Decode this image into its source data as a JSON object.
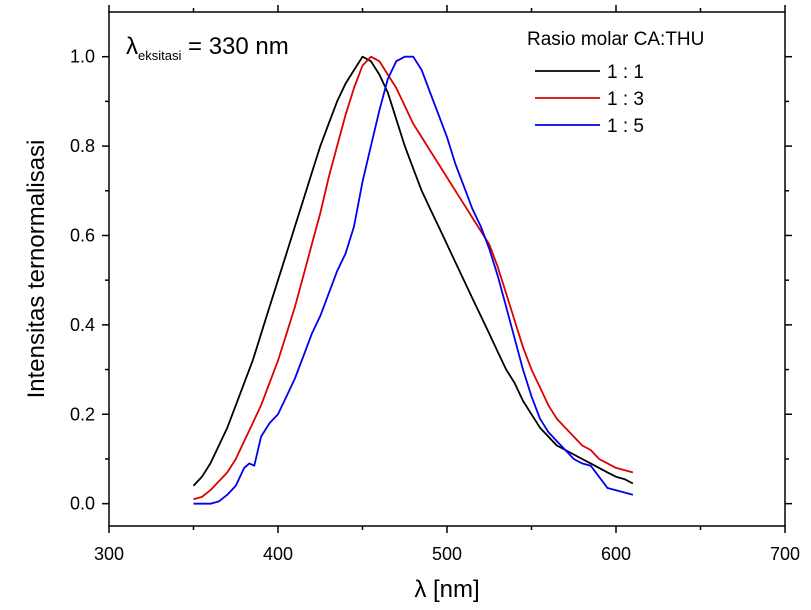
{
  "chart_data": {
    "type": "line",
    "xlabel": "λ [nm]",
    "ylabel": "Intensitas ternormalisasi",
    "xlim": [
      300,
      700
    ],
    "ylim": [
      -0.05,
      1.1
    ],
    "xticks": [
      300,
      400,
      500,
      600,
      700
    ],
    "yticks": [
      0.0,
      0.2,
      0.4,
      0.6,
      0.8,
      1.0
    ],
    "grid": false,
    "annotation": {
      "symbol": "λ",
      "subscript": "eksitasi",
      "text": " = 330 nm"
    },
    "legend": {
      "title": "Rasio molar CA:THU",
      "position": "top-right"
    },
    "colors": {
      "s1": "#000000",
      "s2": "#dd0000",
      "s3": "#0000ee"
    },
    "series": [
      {
        "name": "1 : 1",
        "color": "#000000",
        "x": [
          350,
          355,
          360,
          365,
          370,
          375,
          380,
          385,
          390,
          395,
          400,
          405,
          410,
          415,
          420,
          425,
          430,
          435,
          440,
          445,
          450,
          455,
          460,
          465,
          470,
          475,
          480,
          485,
          490,
          495,
          500,
          505,
          510,
          515,
          520,
          525,
          530,
          535,
          540,
          545,
          550,
          555,
          560,
          565,
          570,
          575,
          580,
          585,
          590,
          595,
          600,
          605,
          610
        ],
        "y": [
          0.04,
          0.06,
          0.09,
          0.13,
          0.17,
          0.22,
          0.27,
          0.32,
          0.38,
          0.44,
          0.5,
          0.56,
          0.62,
          0.68,
          0.74,
          0.8,
          0.85,
          0.9,
          0.94,
          0.97,
          1.0,
          0.99,
          0.96,
          0.92,
          0.86,
          0.8,
          0.75,
          0.7,
          0.66,
          0.62,
          0.58,
          0.54,
          0.5,
          0.46,
          0.42,
          0.38,
          0.34,
          0.3,
          0.27,
          0.23,
          0.2,
          0.17,
          0.15,
          0.13,
          0.12,
          0.11,
          0.1,
          0.09,
          0.08,
          0.07,
          0.06,
          0.055,
          0.045
        ]
      },
      {
        "name": "1 : 3",
        "color": "#dd0000",
        "x": [
          350,
          355,
          360,
          365,
          370,
          375,
          380,
          385,
          390,
          395,
          400,
          405,
          410,
          415,
          420,
          425,
          430,
          435,
          440,
          445,
          450,
          455,
          460,
          465,
          470,
          475,
          480,
          485,
          490,
          495,
          500,
          505,
          510,
          515,
          520,
          525,
          530,
          535,
          540,
          545,
          550,
          555,
          560,
          565,
          570,
          575,
          580,
          585,
          590,
          595,
          600,
          605,
          610
        ],
        "y": [
          0.01,
          0.015,
          0.03,
          0.05,
          0.07,
          0.1,
          0.14,
          0.18,
          0.22,
          0.27,
          0.32,
          0.38,
          0.44,
          0.51,
          0.58,
          0.65,
          0.73,
          0.8,
          0.87,
          0.93,
          0.98,
          1.0,
          0.99,
          0.96,
          0.93,
          0.89,
          0.85,
          0.82,
          0.79,
          0.76,
          0.73,
          0.7,
          0.67,
          0.64,
          0.61,
          0.58,
          0.53,
          0.47,
          0.41,
          0.35,
          0.3,
          0.26,
          0.22,
          0.19,
          0.17,
          0.15,
          0.13,
          0.12,
          0.1,
          0.09,
          0.08,
          0.075,
          0.07
        ]
      },
      {
        "name": "1 : 5",
        "color": "#0000ee",
        "x": [
          350,
          355,
          360,
          365,
          370,
          375,
          380,
          383,
          386,
          390,
          395,
          400,
          405,
          410,
          415,
          420,
          425,
          430,
          435,
          440,
          445,
          450,
          455,
          460,
          465,
          470,
          475,
          480,
          485,
          490,
          495,
          500,
          505,
          510,
          515,
          520,
          525,
          530,
          535,
          540,
          545,
          550,
          555,
          560,
          565,
          570,
          575,
          580,
          585,
          590,
          595,
          600,
          605,
          610
        ],
        "y": [
          0.0,
          0.0,
          0.0,
          0.005,
          0.02,
          0.04,
          0.08,
          0.09,
          0.085,
          0.15,
          0.18,
          0.2,
          0.24,
          0.28,
          0.33,
          0.38,
          0.42,
          0.47,
          0.52,
          0.56,
          0.62,
          0.72,
          0.8,
          0.88,
          0.95,
          0.99,
          1.0,
          1.0,
          0.97,
          0.92,
          0.87,
          0.82,
          0.76,
          0.71,
          0.66,
          0.62,
          0.57,
          0.51,
          0.44,
          0.37,
          0.3,
          0.24,
          0.19,
          0.16,
          0.14,
          0.12,
          0.1,
          0.09,
          0.085,
          0.06,
          0.035,
          0.03,
          0.025,
          0.02
        ]
      }
    ]
  }
}
